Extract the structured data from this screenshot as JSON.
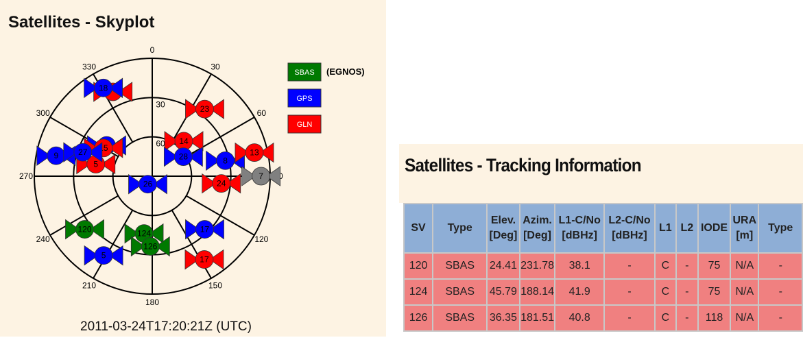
{
  "skyplot": {
    "title": "Satellites - Skyplot",
    "azimuth_ticks": [
      0,
      30,
      60,
      90,
      120,
      150,
      180,
      210,
      240,
      270,
      300,
      330
    ],
    "elevation_rings": [
      0,
      30,
      60
    ],
    "elevation_labels": [
      30,
      60
    ],
    "legend": [
      {
        "name": "SBAS",
        "color": "#007a00",
        "note": "(EGNOS)"
      },
      {
        "name": "GPS",
        "color": "#0000ff"
      },
      {
        "name": "GLN",
        "color": "#ff0000"
      }
    ],
    "satellites": [
      {
        "color": "#ff0000",
        "az": 335,
        "el": 19
      },
      {
        "id": "18",
        "color": "#0000ff",
        "az": 331,
        "el": 13
      },
      {
        "id": "23",
        "color": "#ff0000",
        "az": 38,
        "el": 25
      },
      {
        "id": "15",
        "color": "#0000ff",
        "az": 304,
        "el": 48
      },
      {
        "id": "5",
        "color": "#ff0000",
        "az": 282,
        "el": 46
      },
      {
        "id": "15",
        "color": "#ff0000",
        "az": 300,
        "el": 47
      },
      {
        "id": "9",
        "color": "#0000ff",
        "az": 282,
        "el": 15
      },
      {
        "id": "27",
        "color": "#0000ff",
        "az": 289,
        "el": 34
      },
      {
        "id": "14",
        "color": "#ff0000",
        "az": 42,
        "el": 54
      },
      {
        "id": "28",
        "color": "#0000ff",
        "az": 58,
        "el": 62
      },
      {
        "id": "8",
        "color": "#0000ff",
        "az": 78,
        "el": 33
      },
      {
        "id": "13",
        "color": "#ff0000",
        "az": 77,
        "el": 10
      },
      {
        "id": "24",
        "color": "#ff0000",
        "az": 96,
        "el": 37
      },
      {
        "id": "7",
        "color": "#808080",
        "az": 90,
        "el": 7
      },
      {
        "id": "26",
        "color": "#0000ff",
        "az": 209,
        "el": 83
      },
      {
        "id": "120",
        "color": "#007a00",
        "az": 231.78,
        "el": 24.41
      },
      {
        "id": "124",
        "color": "#007a00",
        "az": 188.14,
        "el": 45.79
      },
      {
        "id": "126",
        "color": "#007a00",
        "az": 181.51,
        "el": 36.35
      },
      {
        "id": "5",
        "color": "#0000ff",
        "az": 211.5,
        "el": 19
      },
      {
        "id": "17",
        "color": "#0000ff",
        "az": 135.4,
        "el": 33
      },
      {
        "id": "17",
        "color": "#ff0000",
        "az": 148,
        "el": 15
      }
    ],
    "timestamp": "2011-03-24T17:20:21Z (UTC)"
  },
  "tracking": {
    "title": "Satellites - Tracking Information",
    "header": [
      [
        "SV"
      ],
      [
        "Type"
      ],
      [
        "Elev.",
        "[Deg]"
      ],
      [
        "Azim.",
        "[Deg]"
      ],
      [
        "L1-C/No",
        "[dBHz]"
      ],
      [
        "L2-C/No",
        "[dBHz]"
      ],
      [
        "L1"
      ],
      [
        "L2"
      ],
      [
        "IODE"
      ],
      [
        "URA",
        "[m]"
      ],
      [
        "Type"
      ]
    ],
    "rows": [
      [
        "120",
        "SBAS",
        "24.41",
        "231.78",
        "38.1",
        "-",
        "C",
        "-",
        "75",
        "N/A",
        "-"
      ],
      [
        "124",
        "SBAS",
        "45.79",
        "188.14",
        "41.9",
        "-",
        "C",
        "-",
        "75",
        "N/A",
        "-"
      ],
      [
        "126",
        "SBAS",
        "36.35",
        "181.51",
        "40.8",
        "-",
        "C",
        "-",
        "118",
        "N/A",
        "-"
      ]
    ]
  }
}
